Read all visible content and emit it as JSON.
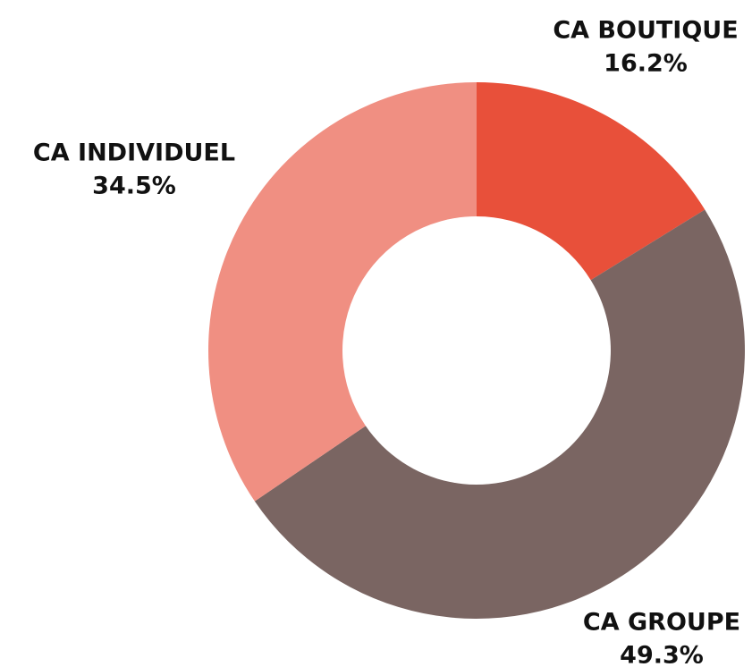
{
  "chart_data": {
    "type": "donut",
    "categories": [
      "CA BOUTIQUE",
      "CA GROUPE",
      "CA INDIVIDUEL"
    ],
    "values": [
      16.2,
      49.3,
      34.5
    ],
    "value_labels": [
      "16.2%",
      "49.3%",
      "34.5%"
    ],
    "colors": [
      "#e8503a",
      "#7a6562",
      "#f08f82"
    ]
  }
}
